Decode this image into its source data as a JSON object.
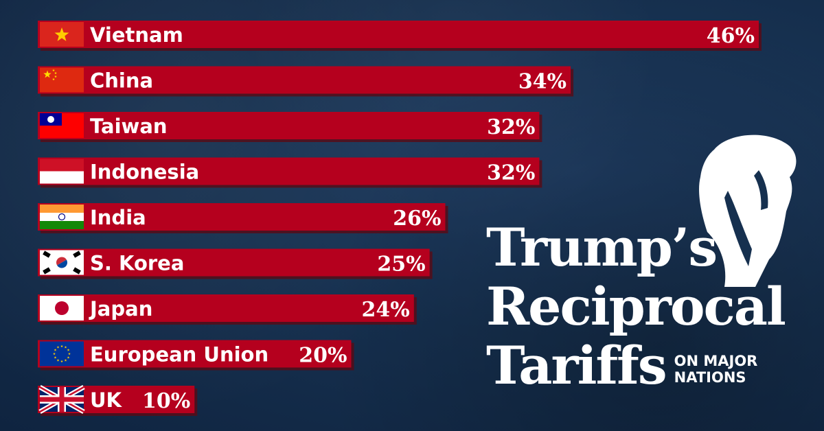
{
  "title": {
    "line1": "Trump’s",
    "line2": "Reciprocal",
    "line3": "Tariffs",
    "subtitle_line1": "ON MAJOR",
    "subtitle_line2": "NATIONS"
  },
  "colors": {
    "bar": "#b5001e",
    "bar_shadow": "#5a0a14",
    "background": "#16304f",
    "text": "#ffffff"
  },
  "chart_data": {
    "type": "bar",
    "orientation": "horizontal",
    "categories": [
      "Vietnam",
      "China",
      "Taiwan",
      "Indonesia",
      "India",
      "S. Korea",
      "Japan",
      "European Union",
      "UK"
    ],
    "values": [
      46,
      34,
      32,
      32,
      26,
      25,
      24,
      20,
      10
    ],
    "value_labels": [
      "46%",
      "34%",
      "32%",
      "32%",
      "26%",
      "25%",
      "24%",
      "20%",
      "10%"
    ],
    "flags": [
      "vietnam-flag",
      "china-flag",
      "taiwan-flag",
      "indonesia-flag",
      "india-flag",
      "south-korea-flag",
      "japan-flag",
      "eu-flag",
      "uk-flag"
    ],
    "title": "Trump’s Reciprocal Tariffs",
    "subtitle": "ON MAJOR NATIONS",
    "xlabel": "",
    "ylabel": "",
    "xlim": [
      0,
      46
    ],
    "grid": false,
    "legend": "none"
  }
}
